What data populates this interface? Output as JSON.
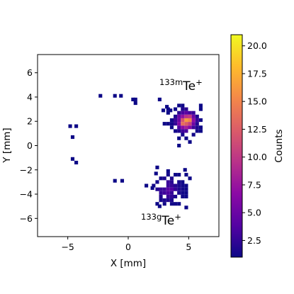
{
  "chart_data": {
    "type": "heatmap",
    "title": "",
    "xlabel": "X [mm]",
    "ylabel": "Y [mm]",
    "xlim": [
      -7.5,
      7.5
    ],
    "ylim": [
      -7.5,
      7.5
    ],
    "xticks": [
      -5,
      0,
      5
    ],
    "yticks": [
      -6,
      -4,
      -2,
      0,
      2,
      4,
      6
    ],
    "xtick_labels": [
      "−5",
      "0",
      "5"
    ],
    "ytick_labels": [
      "−6",
      "−4",
      "−2",
      "0",
      "2",
      "4",
      "6"
    ],
    "grid": false,
    "colormap": "plasma",
    "bin_size_mm": 0.3,
    "color_range": [
      1,
      21
    ],
    "colorbar": {
      "label": "Counts",
      "ticks": [
        2.5,
        5.0,
        7.5,
        10.0,
        12.5,
        15.0,
        17.5,
        20.0
      ],
      "tick_labels": [
        "2.5",
        "5.0",
        "7.5",
        "10.0",
        "12.5",
        "15.0",
        "17.5",
        "20.0"
      ]
    },
    "annotations": [
      {
        "id": "te133m",
        "sup": "133m",
        "text": "Te",
        "charge": "+",
        "x": 4.4,
        "y": 4.9
      },
      {
        "id": "te133g",
        "sup": "133g",
        "text": "Te",
        "charge": "+",
        "x": 2.9,
        "y": -6.0
      }
    ],
    "clusters": [
      {
        "name": "133mTe+",
        "cx": 4.8,
        "cy": 2.0,
        "sigma": 0.65,
        "peak": 21,
        "n": 60,
        "seed": 7
      },
      {
        "name": "133gTe+",
        "cx": 3.3,
        "cy": -3.6,
        "sigma": 0.85,
        "peak": 4.5,
        "n": 55,
        "seed": 13
      }
    ],
    "scattered_points": [
      {
        "x": -2.3,
        "y": 4.1,
        "v": 1
      },
      {
        "x": -1.1,
        "y": 4.1,
        "v": 1
      },
      {
        "x": -0.6,
        "y": 4.1,
        "v": 1
      },
      {
        "x": 0.4,
        "y": 3.8,
        "v": 1
      },
      {
        "x": 0.6,
        "y": 3.8,
        "v": 1
      },
      {
        "x": 0.6,
        "y": 3.5,
        "v": 1
      },
      {
        "x": 2.6,
        "y": 3.8,
        "v": 1
      },
      {
        "x": -4.8,
        "y": 1.6,
        "v": 1
      },
      {
        "x": -4.3,
        "y": 1.6,
        "v": 1
      },
      {
        "x": -4.6,
        "y": 0.7,
        "v": 1
      },
      {
        "x": -4.6,
        "y": -1.1,
        "v": 1
      },
      {
        "x": -4.3,
        "y": -1.4,
        "v": 1
      },
      {
        "x": -1.1,
        "y": -2.9,
        "v": 1
      },
      {
        "x": -0.5,
        "y": -2.9,
        "v": 1
      },
      {
        "x": 3.2,
        "y": 3.2,
        "v": 1
      },
      {
        "x": 3.5,
        "y": 2.9,
        "v": 1
      },
      {
        "x": 2.9,
        "y": 2.9,
        "v": 1
      },
      {
        "x": 2.3,
        "y": -2.3,
        "v": 1
      },
      {
        "x": 4.7,
        "y": -2.0,
        "v": 1
      },
      {
        "x": 2.0,
        "y": -3.5,
        "v": 1
      },
      {
        "x": 2.6,
        "y": -5.0,
        "v": 1
      }
    ]
  }
}
